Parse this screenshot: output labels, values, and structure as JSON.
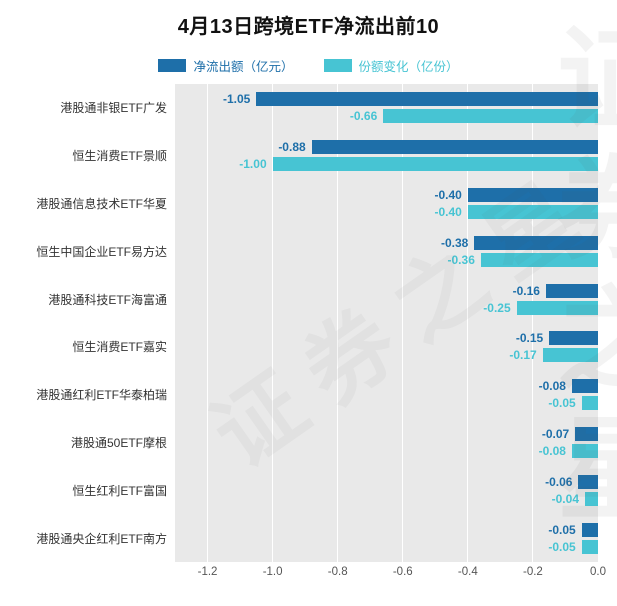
{
  "page": {
    "title": "4月13日跨境ETF净流出前10",
    "watermark": "证券之星"
  },
  "legend": [
    {
      "label": "净流出额（亿元）",
      "color": "#1e6fa9"
    },
    {
      "label": "份额变化（亿份）",
      "color": "#47c4d3"
    }
  ],
  "chart_data": {
    "type": "bar",
    "orientation": "horizontal",
    "title": "4月13日跨境ETF净流出前10",
    "categories": [
      "港股通非银ETF广发",
      "恒生消费ETF景顺",
      "港股通信息技术ETF华夏",
      "恒生中国企业ETF易方达",
      "港股通科技ETF海富通",
      "恒生消费ETF嘉实",
      "港股通红利ETF华泰柏瑞",
      "港股通50ETF摩根",
      "恒生红利ETF富国",
      "港股通央企红利ETF南方"
    ],
    "series": [
      {
        "name": "净流出额（亿元）",
        "color": "#1e6fa9",
        "values": [
          -1.05,
          -0.88,
          -0.4,
          -0.38,
          -0.16,
          -0.15,
          -0.08,
          -0.07,
          -0.06,
          -0.05
        ]
      },
      {
        "name": "份额变化（亿份）",
        "color": "#47c4d3",
        "values": [
          -0.66,
          -1.0,
          -0.4,
          -0.36,
          -0.25,
          -0.17,
          -0.05,
          -0.08,
          -0.04,
          -0.05
        ]
      }
    ],
    "xlim": [
      -1.3,
      0
    ],
    "xticks": [
      -1.2,
      -1.0,
      -0.8,
      -0.6,
      -0.4,
      -0.2,
      0.0
    ],
    "xtick_labels": [
      "-1.2",
      "-1.0",
      "-0.8",
      "-0.6",
      "-0.4",
      "-0.2",
      "0.0"
    ],
    "grid": true,
    "plot_background": "#e9e9e9",
    "legend_position": "top"
  }
}
